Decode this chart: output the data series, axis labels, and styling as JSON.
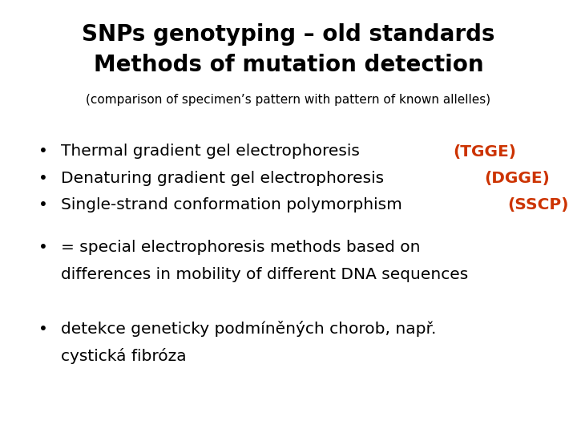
{
  "background_color": "#ffffff",
  "title_line1": "SNPs genotyping – old standards",
  "title_line2": "Methods of mutation detection",
  "title_color": "#000000",
  "title_fontsize": 20,
  "subtitle": "(comparison of specimen’s pattern with pattern of known allelles)",
  "subtitle_color": "#000000",
  "subtitle_fontsize": 11,
  "bullet_color": "#000000",
  "accent_color": "#cc3300",
  "bullet_fontsize": 14.5,
  "note_fontsize": 14.5,
  "bullet_items": [
    {
      "text_before": "Thermal gradient gel electrophoresis ",
      "text_accent": "(TGGE)"
    },
    {
      "text_before": "Denaturing gradient gel electrophoresis ",
      "text_accent": "(DGGE)"
    },
    {
      "text_before": "Single-strand conformation polymorphism ",
      "text_accent": "(SSCP)"
    }
  ],
  "note_item": {
    "line1": "= special electrophoresis methods based on",
    "line2": "differences in mobility of different DNA sequences"
  },
  "czech_item": {
    "line1": "detekce geneticky podmíněných chorob, např.",
    "line2": "cystická fibróza"
  },
  "font_family": "Comic Sans MS",
  "font_family_fallback": "DejaVu Sans"
}
